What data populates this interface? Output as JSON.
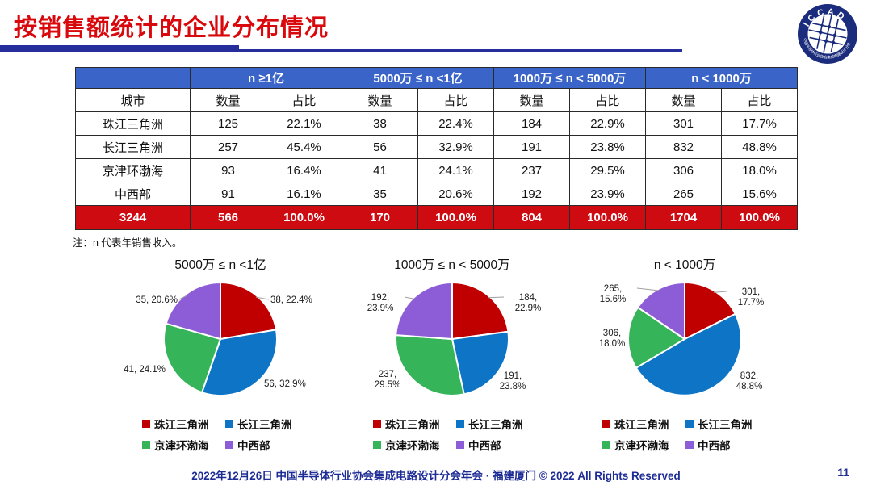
{
  "title": "按销售额统计的企业分布情况",
  "logo": {
    "text": "ICCAD",
    "ring_text": "中国半导体行业协会集成电路设计分会"
  },
  "colors": {
    "title_red": "#d9080c",
    "header_blue": "#3a64c8",
    "total_row_red": "#ce0b11",
    "accent_navy": "#262e9c",
    "footer_navy": "#1e2d96",
    "series_red": "#c00000",
    "series_blue": "#0d74c6",
    "series_green": "#36b45a",
    "series_purple": "#8d5dd8"
  },
  "table": {
    "group_headers": [
      "n ≥1亿",
      "5000万 ≤ n <1亿",
      "1000万 ≤ n < 5000万",
      "n < 1000万"
    ],
    "sub_headers": {
      "city": "城市",
      "count": "数量",
      "share": "占比"
    },
    "rows": [
      {
        "city": "珠江三角洲",
        "cells": [
          "125",
          "22.1%",
          "38",
          "22.4%",
          "184",
          "22.9%",
          "301",
          "17.7%"
        ]
      },
      {
        "city": "长江三角洲",
        "cells": [
          "257",
          "45.4%",
          "56",
          "32.9%",
          "191",
          "23.8%",
          "832",
          "48.8%"
        ]
      },
      {
        "city": "京津环渤海",
        "cells": [
          "93",
          "16.4%",
          "41",
          "24.1%",
          "237",
          "29.5%",
          "306",
          "18.0%"
        ]
      },
      {
        "city": "中西部",
        "cells": [
          "91",
          "16.1%",
          "35",
          "20.6%",
          "192",
          "23.9%",
          "265",
          "15.6%"
        ]
      }
    ],
    "total_row": {
      "city": "3244",
      "cells": [
        "566",
        "100.0%",
        "170",
        "100.0%",
        "804",
        "100.0%",
        "1704",
        "100.0%"
      ]
    }
  },
  "note": "注：n 代表年销售收入。",
  "chart_data": [
    {
      "type": "pie",
      "title": "5000万 ≤ n <1亿",
      "categories": [
        "珠江三角洲",
        "长江三角洲",
        "京津环渤海",
        "中西部"
      ],
      "values": [
        38,
        56,
        41,
        35
      ],
      "percentages": [
        22.4,
        32.9,
        24.1,
        20.6
      ],
      "labels": [
        "38, 22.4%",
        "56, 32.9%",
        "41, 24.1%",
        "35, 20.6%"
      ],
      "colors": [
        "#c00000",
        "#0d74c6",
        "#36b45a",
        "#8d5dd8"
      ],
      "start_angle_deg": -90,
      "direction": "clockwise",
      "legend_position": "bottom"
    },
    {
      "type": "pie",
      "title": "1000万 ≤ n < 5000万",
      "categories": [
        "珠江三角洲",
        "长江三角洲",
        "京津环渤海",
        "中西部"
      ],
      "values": [
        184,
        191,
        237,
        192
      ],
      "percentages": [
        22.9,
        23.8,
        29.5,
        23.9
      ],
      "labels": [
        "184,\n22.9%",
        "191,\n23.8%",
        "237,\n29.5%",
        "192,\n23.9%"
      ],
      "colors": [
        "#c00000",
        "#0d74c6",
        "#36b45a",
        "#8d5dd8"
      ],
      "start_angle_deg": -90,
      "direction": "clockwise",
      "legend_position": "bottom"
    },
    {
      "type": "pie",
      "title": "n < 1000万",
      "categories": [
        "珠江三角洲",
        "长江三角洲",
        "京津环渤海",
        "中西部"
      ],
      "values": [
        301,
        832,
        306,
        265
      ],
      "percentages": [
        17.7,
        48.8,
        18.0,
        15.6
      ],
      "labels": [
        "301,\n17.7%",
        "832,\n48.8%",
        "306,\n18.0%",
        "265,\n15.6%"
      ],
      "colors": [
        "#c00000",
        "#0d74c6",
        "#36b45a",
        "#8d5dd8"
      ],
      "start_angle_deg": -90,
      "direction": "clockwise",
      "legend_position": "bottom"
    }
  ],
  "legend": {
    "items": [
      {
        "label": "珠江三角洲",
        "color": "#c00000"
      },
      {
        "label": "长江三角洲",
        "color": "#0d74c6"
      },
      {
        "label": "京津环渤海",
        "color": "#36b45a"
      },
      {
        "label": "中西部",
        "color": "#8d5dd8"
      }
    ]
  },
  "footer": {
    "text": "2022年12月26日 中国半导体行业协会集成电路设计分会年会 · 福建厦门 © 2022 All Rights Reserved",
    "page": "11"
  }
}
